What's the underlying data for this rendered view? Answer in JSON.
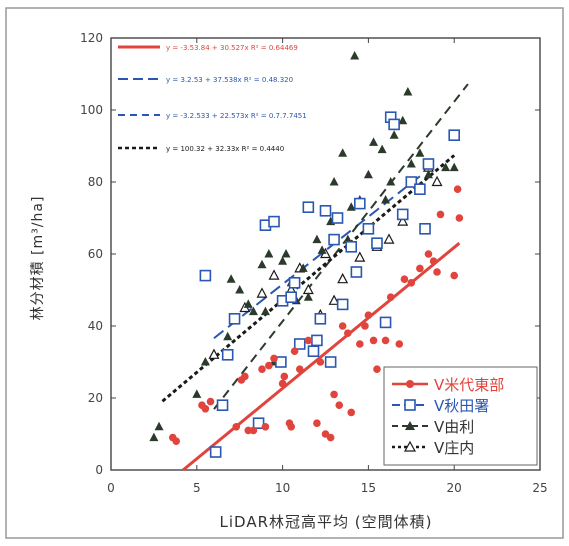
{
  "chart_data": {
    "type": "scatter",
    "title": "",
    "xlabel": "LiDAR林冠高平均 (空間体積)",
    "ylabel": "林分材積 [m³/ha]",
    "xlim": [
      0,
      25
    ],
    "ylim": [
      0,
      120
    ],
    "xticks": [
      "0",
      "5",
      "10",
      "15",
      "20",
      "25"
    ],
    "yticks": [
      "0",
      "20",
      "40",
      "60",
      "80",
      "100",
      "120"
    ],
    "grid": false,
    "legend_position": "bottom-right",
    "equations": [
      "y = -3.53.84 + 30.527x   R² = 0.64469",
      "y = 3.2.53 + 37.538x   R² = 0.48.320",
      "y = -3.2.533 + 22.573x   R² = 0.7.7.7451",
      "y = 100.32 + 32.33x   R² = 0.4440"
    ],
    "series": [
      {
        "name": "V米代東部",
        "color": "#e0443c",
        "marker": "circle",
        "line_style": "solid",
        "fit": [
          [
            4.2,
            0
          ],
          [
            20.3,
            63
          ]
        ],
        "points": [
          [
            3.6,
            9
          ],
          [
            3.8,
            8
          ],
          [
            5.3,
            18
          ],
          [
            5.5,
            17
          ],
          [
            5.8,
            19
          ],
          [
            7.3,
            12
          ],
          [
            7.6,
            25
          ],
          [
            7.8,
            26
          ],
          [
            8.0,
            11
          ],
          [
            8.3,
            11
          ],
          [
            8.8,
            28
          ],
          [
            9.0,
            12
          ],
          [
            9.2,
            29
          ],
          [
            9.5,
            31
          ],
          [
            10.0,
            24
          ],
          [
            10.1,
            26
          ],
          [
            10.4,
            13
          ],
          [
            10.5,
            12
          ],
          [
            10.7,
            33
          ],
          [
            11.0,
            28
          ],
          [
            11.5,
            36
          ],
          [
            12.0,
            13
          ],
          [
            12.2,
            30
          ],
          [
            12.5,
            10
          ],
          [
            12.8,
            9
          ],
          [
            13.0,
            21
          ],
          [
            13.3,
            18
          ],
          [
            13.5,
            40
          ],
          [
            13.8,
            38
          ],
          [
            14.0,
            16
          ],
          [
            14.5,
            35
          ],
          [
            14.8,
            40
          ],
          [
            15.0,
            43
          ],
          [
            15.3,
            36
          ],
          [
            15.5,
            28
          ],
          [
            16.0,
            36
          ],
          [
            16.3,
            48
          ],
          [
            16.8,
            35
          ],
          [
            17.1,
            53
          ],
          [
            17.5,
            52
          ],
          [
            18.0,
            56
          ],
          [
            18.5,
            60
          ],
          [
            18.8,
            58
          ],
          [
            19.0,
            55
          ],
          [
            19.2,
            71
          ],
          [
            20.0,
            54
          ],
          [
            20.2,
            78
          ],
          [
            20.3,
            70
          ]
        ]
      },
      {
        "name": "V秋田署",
        "color": "#2a57b0",
        "marker": "square",
        "line_style": "longdash",
        "fit": [
          [
            6.0,
            36.6
          ],
          [
            18.0,
            81.6
          ]
        ],
        "points": [
          [
            5.5,
            54
          ],
          [
            6.1,
            5
          ],
          [
            6.5,
            18
          ],
          [
            6.8,
            32
          ],
          [
            7.2,
            42
          ],
          [
            8.6,
            13
          ],
          [
            9.0,
            68
          ],
          [
            9.5,
            69
          ],
          [
            9.9,
            30
          ],
          [
            10.0,
            47
          ],
          [
            10.5,
            48
          ],
          [
            10.7,
            52
          ],
          [
            11.0,
            35
          ],
          [
            11.5,
            73
          ],
          [
            11.8,
            33
          ],
          [
            12.0,
            36
          ],
          [
            12.2,
            42
          ],
          [
            12.5,
            72
          ],
          [
            12.8,
            30
          ],
          [
            13.0,
            64
          ],
          [
            13.2,
            70
          ],
          [
            13.5,
            46
          ],
          [
            14.0,
            62
          ],
          [
            14.3,
            55
          ],
          [
            14.5,
            74
          ],
          [
            15.0,
            67
          ],
          [
            15.5,
            63
          ],
          [
            16.0,
            41
          ],
          [
            16.3,
            98
          ],
          [
            16.5,
            96
          ],
          [
            17.0,
            71
          ],
          [
            17.5,
            80
          ],
          [
            18.0,
            78
          ],
          [
            18.3,
            67
          ],
          [
            18.5,
            85
          ],
          [
            20.0,
            93
          ]
        ]
      },
      {
        "name": "V由利",
        "color": "#2c3a2c",
        "marker": "triangle",
        "line_style": "dashed",
        "fit": [
          [
            6.0,
            16.9
          ],
          [
            20.8,
            107.2
          ]
        ],
        "points": [
          [
            2.5,
            9
          ],
          [
            2.8,
            12
          ],
          [
            5.0,
            21
          ],
          [
            5.5,
            30
          ],
          [
            6.8,
            37
          ],
          [
            7.0,
            53
          ],
          [
            7.5,
            50
          ],
          [
            8.0,
            46
          ],
          [
            8.3,
            44
          ],
          [
            8.8,
            57
          ],
          [
            9.0,
            44
          ],
          [
            9.2,
            60
          ],
          [
            9.5,
            30
          ],
          [
            10.0,
            58
          ],
          [
            10.2,
            60
          ],
          [
            10.5,
            52
          ],
          [
            10.8,
            47
          ],
          [
            11.2,
            56
          ],
          [
            11.5,
            48
          ],
          [
            12.0,
            64
          ],
          [
            12.3,
            61
          ],
          [
            12.8,
            69
          ],
          [
            13.0,
            80
          ],
          [
            13.5,
            88
          ],
          [
            13.8,
            64
          ],
          [
            14.0,
            73
          ],
          [
            14.2,
            115
          ],
          [
            14.5,
            75
          ],
          [
            15.0,
            82
          ],
          [
            15.3,
            91
          ],
          [
            15.8,
            89
          ],
          [
            16.0,
            75
          ],
          [
            16.3,
            80
          ],
          [
            16.5,
            93
          ],
          [
            17.0,
            97
          ],
          [
            17.3,
            105
          ],
          [
            17.5,
            85
          ],
          [
            18.0,
            88
          ],
          [
            18.5,
            82
          ],
          [
            19.5,
            84
          ],
          [
            20.0,
            84
          ]
        ]
      },
      {
        "name": "V庄内",
        "color": "#1a1a1a",
        "marker": "open-triangle",
        "line_style": "dotted",
        "fit": [
          [
            3.0,
            19.1
          ],
          [
            20.0,
            87.4
          ]
        ],
        "points": [
          [
            6.0,
            32
          ],
          [
            7.8,
            45
          ],
          [
            8.8,
            49
          ],
          [
            9.5,
            54
          ],
          [
            10.5,
            50
          ],
          [
            11.0,
            56
          ],
          [
            11.5,
            50
          ],
          [
            12.2,
            43
          ],
          [
            12.5,
            60
          ],
          [
            13.0,
            47
          ],
          [
            13.5,
            53
          ],
          [
            14.5,
            59
          ],
          [
            15.5,
            62
          ],
          [
            16.2,
            64
          ],
          [
            17.0,
            69
          ],
          [
            18.5,
            84
          ],
          [
            19.0,
            80
          ]
        ]
      }
    ]
  }
}
